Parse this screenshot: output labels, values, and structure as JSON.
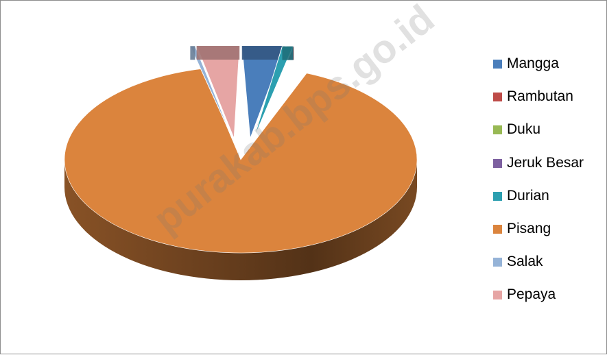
{
  "chart_data": {
    "type": "pie",
    "title": "",
    "style": "3d-exploded",
    "legend_position": "right",
    "series": [
      {
        "name": "Mangga",
        "value": 2.8,
        "color": "#4a7ebb"
      },
      {
        "name": "Rambutan",
        "value": 1.3,
        "color": "#be4b48"
      },
      {
        "name": "Duku",
        "value": 0.5,
        "color": "#98b954"
      },
      {
        "name": "Jeruk Besar",
        "value": 0.3,
        "color": "#7d60a0"
      },
      {
        "name": "Durian",
        "value": 1.2,
        "color": "#2c9fb0"
      },
      {
        "name": "Pisang",
        "value": 90.4,
        "color": "#db843d"
      },
      {
        "name": "Salak",
        "value": 0.7,
        "color": "#95b3d7"
      },
      {
        "name": "Pepaya",
        "value": 2.8,
        "color": "#e6a5a4"
      }
    ]
  },
  "watermark": {
    "text": "purakab.bps.go.id",
    "icon": "watermark-text"
  }
}
